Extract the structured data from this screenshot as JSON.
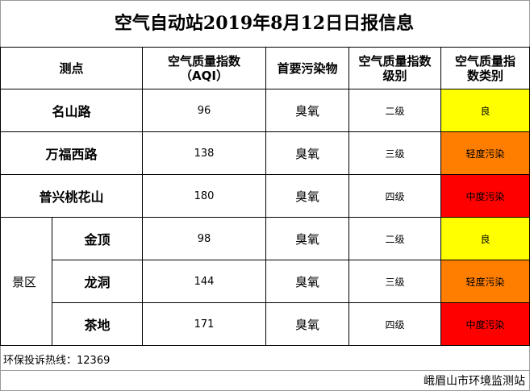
{
  "title": "空气自动站2019年8月12日日报信息",
  "headers": {
    "site": "测点",
    "aqi_line1": "空气质量指数",
    "aqi_line2": "（AQI）",
    "pollutant": "首要污染物",
    "level_line1": "空气质量指数",
    "level_line2": "级别",
    "category_line1": "空气质量指",
    "category_line2": "数类别"
  },
  "rows": [
    {
      "site": "名山路",
      "aqi": "96",
      "pollutant": "臭氧",
      "level": "二级",
      "category": "良",
      "color": "#ffff00"
    },
    {
      "site": "万福西路",
      "aqi": "138",
      "pollutant": "臭氧",
      "level": "三级",
      "category": "轻度污染",
      "color": "#ff7e00"
    },
    {
      "site": "普兴桃花山",
      "aqi": "180",
      "pollutant": "臭氧",
      "level": "四级",
      "category": "中度污染",
      "color": "#ff0000"
    }
  ],
  "zone": {
    "label": "景区",
    "rows": [
      {
        "site": "金顶",
        "aqi": "98",
        "pollutant": "臭氧",
        "level": "二级",
        "category": "良",
        "color": "#ffff00"
      },
      {
        "site": "龙洞",
        "aqi": "144",
        "pollutant": "臭氧",
        "level": "三级",
        "category": "轻度污染",
        "color": "#ff7e00"
      },
      {
        "site": "茶地",
        "aqi": "171",
        "pollutant": "臭氧",
        "level": "四级",
        "category": "中度污染",
        "color": "#ff0000"
      }
    ]
  },
  "footer": {
    "hotline": "环保投诉热线：12369",
    "org": "峨眉山市环境监测站"
  }
}
